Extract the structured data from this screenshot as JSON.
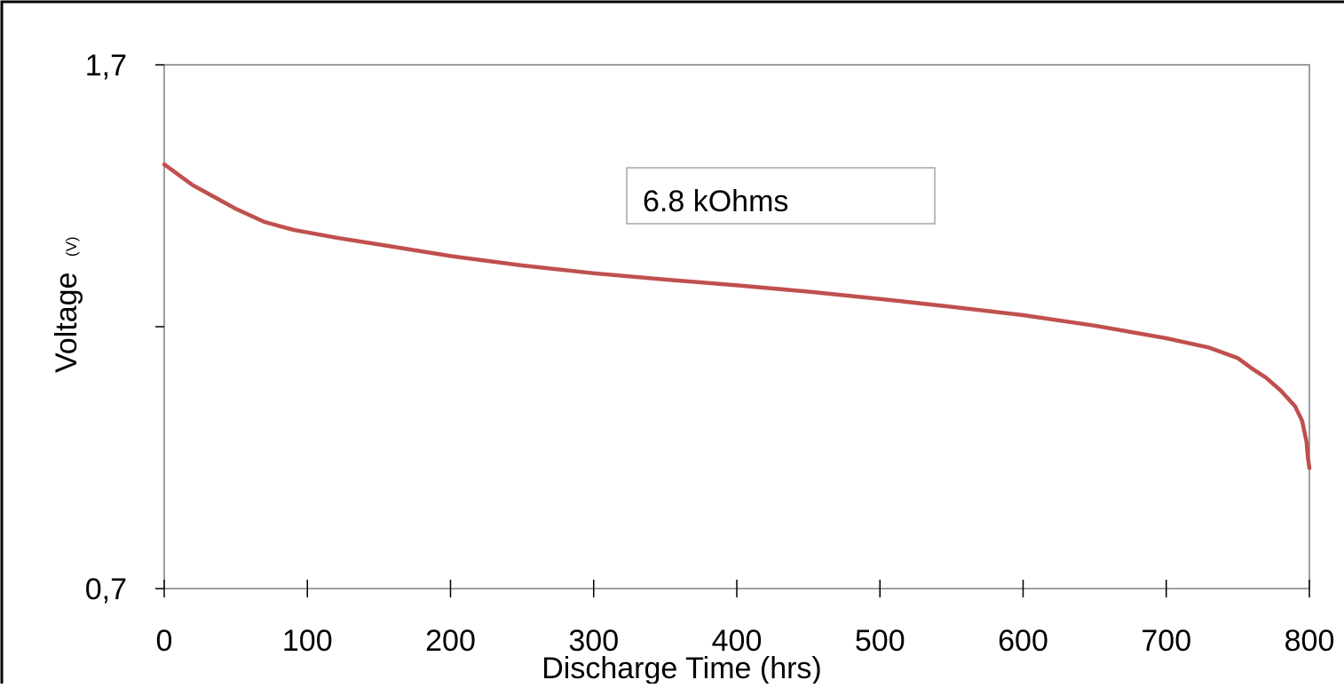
{
  "chart_data": {
    "type": "line",
    "title": "",
    "xlabel": "Discharge Time (hrs)",
    "ylabel": "Voltage",
    "ylabel_unit": "(V)",
    "annotation": "6.8 kOhms",
    "xlim": [
      0,
      800
    ],
    "ylim": [
      0.7,
      1.7
    ],
    "x_ticks": [
      0,
      100,
      200,
      300,
      400,
      500,
      600,
      700,
      800
    ],
    "x_tick_labels": [
      "0",
      "100",
      "200",
      "300",
      "400",
      "500",
      "600",
      "700",
      "800"
    ],
    "y_ticks": [
      0.7,
      1.2,
      1.7
    ],
    "y_tick_labels": [
      "0,7",
      "",
      "1,7"
    ],
    "grid": false,
    "legend": "none",
    "series_color": "#c0504d",
    "series": [
      {
        "x": [
          0,
          10,
          20,
          30,
          50,
          70,
          90,
          120,
          150,
          200,
          250,
          300,
          350,
          400,
          450,
          500,
          550,
          600,
          650,
          700,
          730,
          750,
          760,
          770,
          780,
          790,
          795,
          798,
          799,
          800
        ],
        "y": [
          1.51,
          1.49,
          1.47,
          1.455,
          1.425,
          1.4,
          1.385,
          1.37,
          1.357,
          1.335,
          1.317,
          1.302,
          1.29,
          1.279,
          1.267,
          1.253,
          1.238,
          1.222,
          1.202,
          1.178,
          1.16,
          1.14,
          1.12,
          1.102,
          1.078,
          1.048,
          1.02,
          0.98,
          0.95,
          0.93
        ]
      }
    ]
  }
}
